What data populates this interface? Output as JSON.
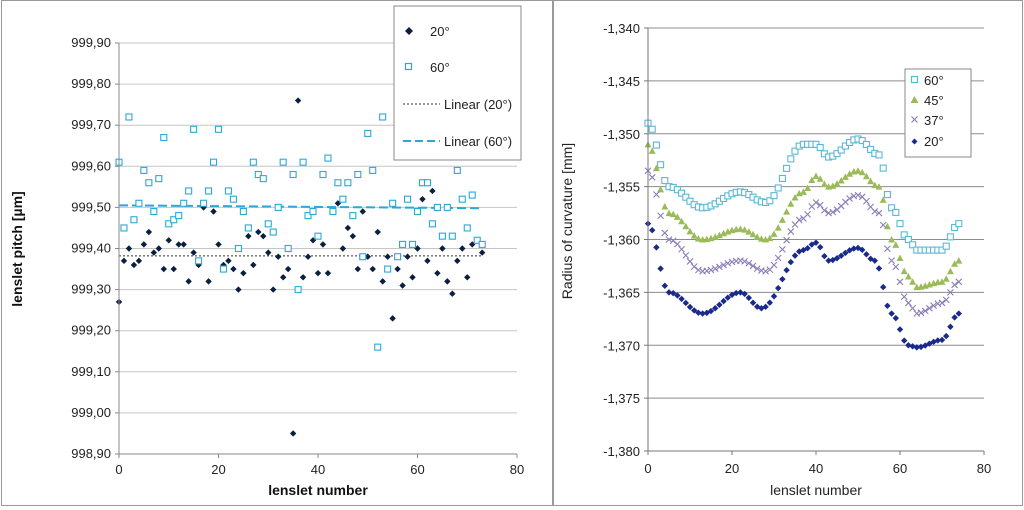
{
  "chart_data": [
    {
      "type": "scatter",
      "title": "",
      "xlabel": "lenslet number",
      "ylabel": "lenslet pitch [µm]",
      "xlim": [
        0,
        80
      ],
      "ylim": [
        998.9,
        999.9
      ],
      "x_ticks": [
        "0",
        "20",
        "40",
        "60",
        "80"
      ],
      "y_ticks": [
        "998,90",
        "999,00",
        "999,10",
        "999,20",
        "999,30",
        "999,40",
        "999,50",
        "999,60",
        "999,70",
        "999,80",
        "999,90"
      ],
      "gridlines": "horizontal",
      "legend_position": "top-right",
      "legend": [
        "20°",
        "60°",
        "Linear (20°)",
        "Linear (60°)"
      ],
      "series": [
        {
          "name": "20°",
          "marker": "diamond",
          "color": "#0b1f3f",
          "x": [
            0,
            1,
            2,
            3,
            4,
            5,
            6,
            7,
            8,
            9,
            10,
            11,
            12,
            13,
            14,
            15,
            16,
            17,
            18,
            19,
            20,
            21,
            22,
            23,
            24,
            25,
            26,
            27,
            28,
            29,
            30,
            31,
            32,
            33,
            34,
            35,
            36,
            37,
            38,
            39,
            40,
            41,
            42,
            43,
            44,
            45,
            46,
            47,
            48,
            49,
            50,
            51,
            52,
            53,
            54,
            55,
            56,
            57,
            58,
            59,
            60,
            61,
            62,
            63,
            64,
            65,
            66,
            67,
            68,
            69,
            70,
            71,
            72,
            73
          ],
          "y": [
            999.27,
            999.37,
            999.4,
            999.36,
            999.37,
            999.41,
            999.44,
            999.39,
            999.4,
            999.35,
            999.42,
            999.35,
            999.41,
            999.41,
            999.32,
            999.39,
            999.36,
            999.5,
            999.32,
            999.49,
            999.41,
            999.36,
            999.37,
            999.35,
            999.3,
            999.34,
            999.43,
            999.36,
            999.44,
            999.43,
            999.39,
            999.3,
            999.38,
            999.33,
            999.35,
            998.95,
            999.76,
            999.33,
            999.38,
            999.42,
            999.34,
            999.41,
            999.34,
            999.49,
            999.51,
            999.4,
            999.45,
            999.43,
            999.35,
            999.49,
            999.38,
            999.35,
            999.44,
            999.32,
            999.38,
            999.23,
            999.35,
            999.31,
            999.38,
            999.33,
            999.4,
            999.52,
            999.37,
            999.54,
            999.34,
            999.4,
            999.32,
            999.29,
            999.37,
            999.4,
            999.33,
            999.41,
            999.42,
            999.39
          ]
        },
        {
          "name": "60°",
          "marker": "square-open",
          "color": "#29a9d8",
          "x": [
            0,
            1,
            2,
            3,
            4,
            5,
            6,
            7,
            8,
            9,
            10,
            11,
            12,
            13,
            14,
            15,
            16,
            17,
            18,
            19,
            20,
            21,
            22,
            23,
            24,
            25,
            26,
            27,
            28,
            29,
            30,
            31,
            32,
            33,
            34,
            35,
            36,
            37,
            38,
            39,
            40,
            41,
            42,
            43,
            44,
            45,
            46,
            47,
            48,
            49,
            50,
            51,
            52,
            53,
            54,
            55,
            56,
            57,
            58,
            59,
            60,
            61,
            62,
            63,
            64,
            65,
            66,
            67,
            68,
            69,
            70,
            71,
            72,
            73
          ],
          "y": [
            999.61,
            999.45,
            999.72,
            999.47,
            999.51,
            999.59,
            999.56,
            999.49,
            999.57,
            999.67,
            999.46,
            999.47,
            999.48,
            999.51,
            999.54,
            999.69,
            999.37,
            999.51,
            999.54,
            999.61,
            999.69,
            999.35,
            999.54,
            999.52,
            999.4,
            999.49,
            999.45,
            999.61,
            999.58,
            999.57,
            999.46,
            999.44,
            999.5,
            999.61,
            999.4,
            999.58,
            999.3,
            999.61,
            999.48,
            999.49,
            999.43,
            999.58,
            999.62,
            999.49,
            999.56,
            999.52,
            999.56,
            999.48,
            999.58,
            999.38,
            999.68,
            999.59,
            999.16,
            999.72,
            999.35,
            999.51,
            999.38,
            999.41,
            999.52,
            999.41,
            999.49,
            999.56,
            999.56,
            999.46,
            999.5,
            999.43,
            999.5,
            999.43,
            999.59,
            999.52,
            999.45,
            999.53,
            999.42,
            999.41
          ]
        },
        {
          "name": "Linear (20°)",
          "type": "line",
          "style": "dotted",
          "color": "#333333",
          "x": [
            0,
            73
          ],
          "y": [
            999.382,
            999.382
          ]
        },
        {
          "name": "Linear (60°)",
          "type": "line",
          "style": "dashed",
          "color": "#29a9d8",
          "x": [
            0,
            73
          ],
          "y": [
            999.505,
            999.498
          ]
        }
      ]
    },
    {
      "type": "scatter",
      "title": "",
      "xlabel": "lenslet number",
      "ylabel": "Radius of curvature [mm]",
      "xlim": [
        0,
        80
      ],
      "ylim": [
        -1380,
        -1340
      ],
      "x_ticks": [
        "0",
        "20",
        "40",
        "60",
        "80"
      ],
      "y_ticks": [
        "-1,380",
        "-1,375",
        "-1,370",
        "-1,365",
        "-1,360",
        "-1,355",
        "-1,350",
        "-1,345",
        "-1,340"
      ],
      "gridlines": "horizontal",
      "legend_position": "top-right",
      "legend": [
        "60°",
        "45°",
        "37°",
        "20°"
      ],
      "series": [
        {
          "name": "60°",
          "marker": "square-open",
          "color": "#5bb8d5",
          "knots_x": [
            0,
            5,
            13,
            22,
            28,
            37,
            40,
            43,
            50,
            55,
            58,
            62,
            64,
            70,
            74
          ],
          "knots_y": [
            -1349,
            -1355,
            -1357,
            -1355.5,
            -1356.5,
            -1351,
            -1351,
            -1352.2,
            -1350.5,
            -1352,
            -1357,
            -1360,
            -1361,
            -1361,
            -1358.5
          ]
        },
        {
          "name": "45°",
          "marker": "triangle",
          "color": "#9bbb59",
          "knots_x": [
            0,
            5,
            13,
            22,
            28,
            37,
            40,
            43,
            50,
            55,
            58,
            62,
            64,
            70,
            74
          ],
          "knots_y": [
            -1351,
            -1357.5,
            -1360,
            -1359,
            -1360,
            -1355.5,
            -1354,
            -1355,
            -1353.5,
            -1355,
            -1360,
            -1363.5,
            -1364.5,
            -1364,
            -1362
          ]
        },
        {
          "name": "37°",
          "marker": "x",
          "color": "#8b7eb8",
          "knots_x": [
            0,
            5,
            13,
            22,
            28,
            37,
            40,
            43,
            50,
            55,
            58,
            62,
            64,
            70,
            74
          ],
          "knots_y": [
            -1353.5,
            -1360,
            -1363,
            -1362,
            -1363,
            -1358,
            -1356.5,
            -1357.5,
            -1355.8,
            -1357.5,
            -1362,
            -1366,
            -1367,
            -1366,
            -1364
          ]
        },
        {
          "name": "20°",
          "marker": "diamond",
          "color": "#1a2a8c",
          "knots_x": [
            0,
            5,
            13,
            22,
            27,
            37,
            40,
            43,
            50,
            54,
            58,
            62,
            64,
            70,
            74
          ],
          "knots_y": [
            -1358.5,
            -1365,
            -1367,
            -1365,
            -1366.5,
            -1361,
            -1360.3,
            -1362,
            -1360.8,
            -1362,
            -1367,
            -1370,
            -1370.2,
            -1369.5,
            -1367
          ]
        }
      ]
    }
  ]
}
